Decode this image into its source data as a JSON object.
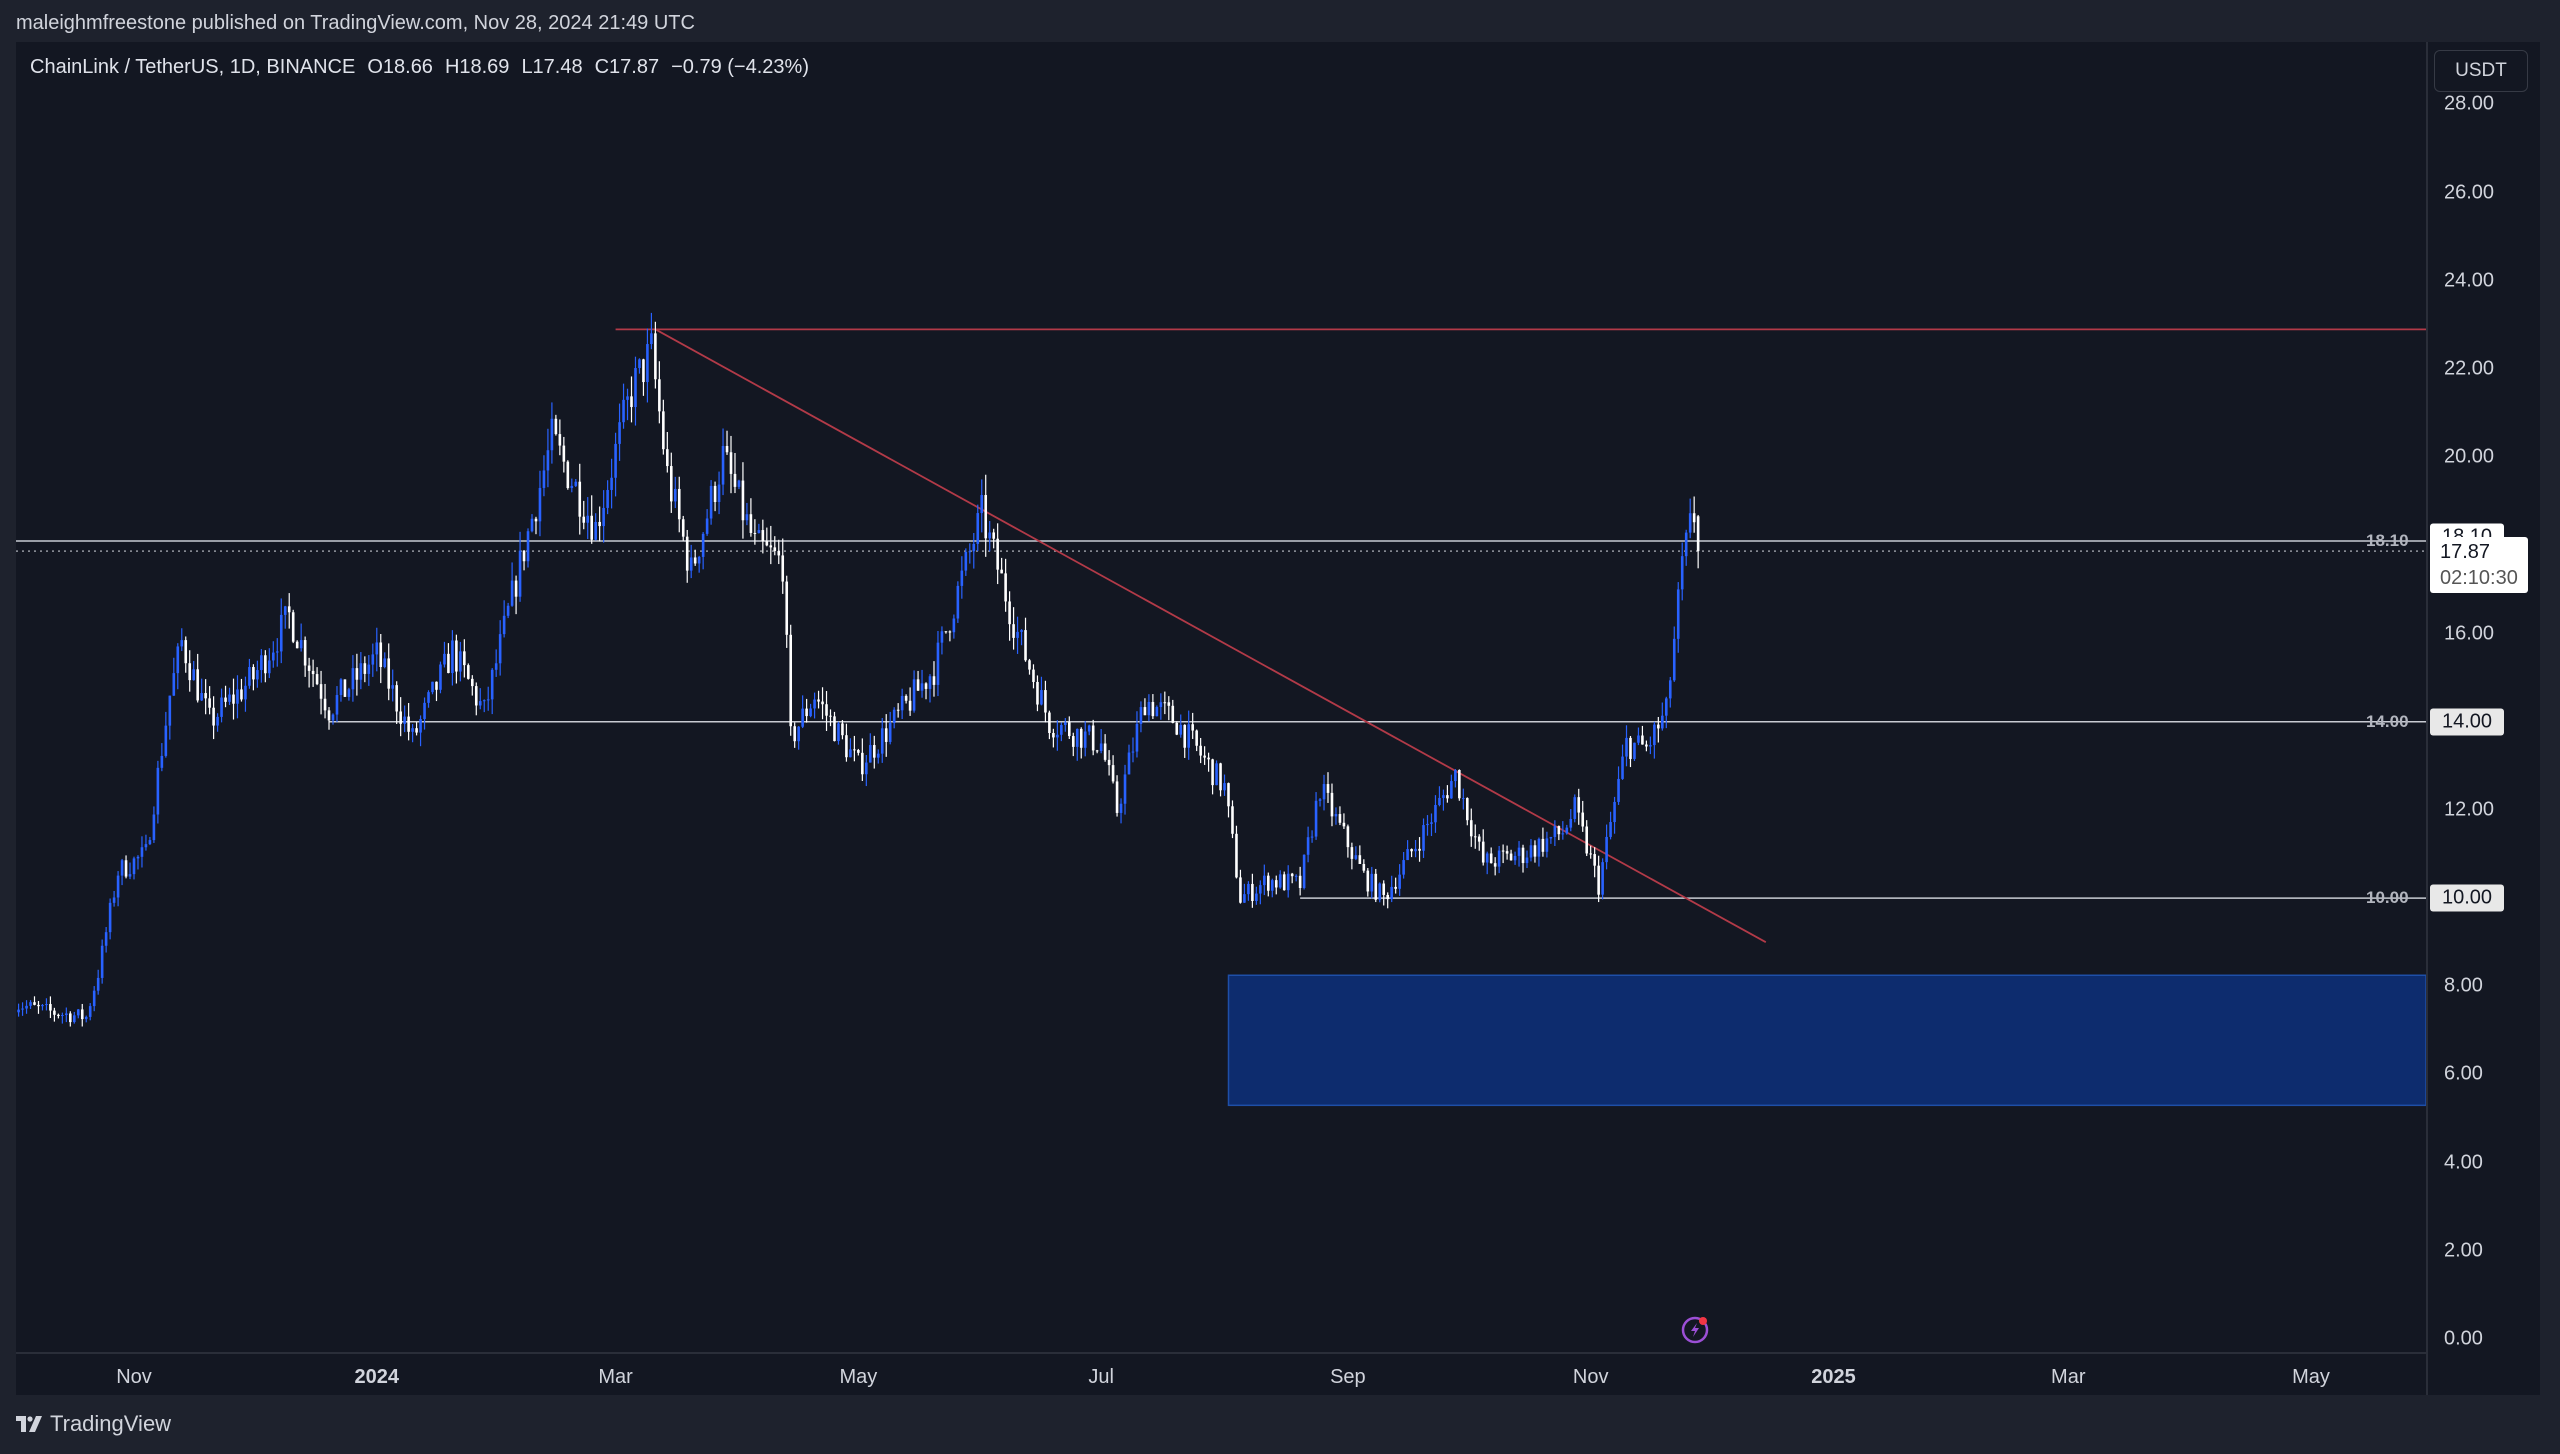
{
  "header": {
    "publisher_text": "maleighmfreestone published on TradingView.com, Nov 28, 2024 21:49 UTC"
  },
  "legend": {
    "symbol": "ChainLink / TetherUS, 1D, BINANCE",
    "open": "O18.66",
    "high": "H18.69",
    "low": "L17.48",
    "close": "C17.87",
    "change": "−0.79 (−4.23%)"
  },
  "price_axis": {
    "currency": "USDT",
    "labels": [
      "28.00",
      "26.00",
      "24.00",
      "22.00",
      "20.00",
      "16.00",
      "12.00",
      "8.00",
      "6.00",
      "4.00",
      "2.00",
      "0.00"
    ],
    "tags": {
      "level_18": "18.10",
      "last_price": "17.87",
      "countdown": "02:10:30",
      "level_14": "14.00",
      "level_10": "10.00"
    }
  },
  "line_labels": {
    "l18": "18.10",
    "l14": "14.00",
    "l10": "10.00"
  },
  "time_axis": {
    "labels": [
      {
        "text": "Nov",
        "date": "2023-11-01",
        "bold": false
      },
      {
        "text": "2024",
        "date": "2024-01-01",
        "bold": true
      },
      {
        "text": "Mar",
        "date": "2024-03-01",
        "bold": false
      },
      {
        "text": "May",
        "date": "2024-05-01",
        "bold": false
      },
      {
        "text": "Jul",
        "date": "2024-07-01",
        "bold": false
      },
      {
        "text": "Sep",
        "date": "2024-09-01",
        "bold": false
      },
      {
        "text": "Nov",
        "date": "2024-11-01",
        "bold": false
      },
      {
        "text": "2025",
        "date": "2025-01-01",
        "bold": true
      },
      {
        "text": "Mar",
        "date": "2025-03-01",
        "bold": false
      },
      {
        "text": "May",
        "date": "2025-05-01",
        "bold": false
      }
    ]
  },
  "footer": {
    "brand": "TradingView"
  },
  "colors": {
    "up": "#2962ff",
    "down": "#ffffff",
    "trend": "#b23a48",
    "zone": "#0d2c6e",
    "zone_border": "#1e4fa8",
    "level": "#c8cbd3"
  },
  "chart_data": {
    "type": "candlestick",
    "symbol": "LINKUSDT",
    "interval": "1D",
    "ylim": [
      0,
      28
    ],
    "last": {
      "open": 18.66,
      "high": 18.69,
      "low": 17.48,
      "close": 17.87
    },
    "close_path": [
      [
        "2023-10-02",
        7.6
      ],
      [
        "2023-10-12",
        7.4
      ],
      [
        "2023-10-20",
        7.3
      ],
      [
        "2023-10-23",
        8.3
      ],
      [
        "2023-10-28",
        10.6
      ],
      [
        "2023-11-04",
        11.0
      ],
      [
        "2023-11-10",
        14.6
      ],
      [
        "2023-11-13",
        15.8
      ],
      [
        "2023-11-20",
        14.0
      ],
      [
        "2023-12-01",
        15.0
      ],
      [
        "2023-12-10",
        16.4
      ],
      [
        "2023-12-20",
        14.3
      ],
      [
        "2024-01-01",
        15.5
      ],
      [
        "2024-01-10",
        13.6
      ],
      [
        "2024-01-20",
        15.6
      ],
      [
        "2024-01-28",
        14.2
      ],
      [
        "2024-02-05",
        17.2
      ],
      [
        "2024-02-14",
        20.4
      ],
      [
        "2024-02-25",
        18.4
      ],
      [
        "2024-03-05",
        21.5
      ],
      [
        "2024-03-10",
        22.4
      ],
      [
        "2024-03-14",
        19.6
      ],
      [
        "2024-03-20",
        17.4
      ],
      [
        "2024-03-28",
        20.0
      ],
      [
        "2024-04-05",
        18.0
      ],
      [
        "2024-04-12",
        17.6
      ],
      [
        "2024-04-14",
        13.6
      ],
      [
        "2024-04-20",
        14.6
      ],
      [
        "2024-05-01",
        13.0
      ],
      [
        "2024-05-10",
        14.0
      ],
      [
        "2024-05-20",
        15.2
      ],
      [
        "2024-06-01",
        18.7
      ],
      [
        "2024-06-10",
        16.0
      ],
      [
        "2024-06-18",
        14.0
      ],
      [
        "2024-07-01",
        13.5
      ],
      [
        "2024-07-05",
        12.0
      ],
      [
        "2024-07-12",
        14.5
      ],
      [
        "2024-07-20",
        14.0
      ],
      [
        "2024-08-01",
        12.5
      ],
      [
        "2024-08-05",
        10.0
      ],
      [
        "2024-08-12",
        10.4
      ],
      [
        "2024-08-20",
        10.3
      ],
      [
        "2024-08-25",
        12.5
      ],
      [
        "2024-09-05",
        10.5
      ],
      [
        "2024-09-10",
        10.0
      ],
      [
        "2024-09-20",
        11.5
      ],
      [
        "2024-09-28",
        12.8
      ],
      [
        "2024-10-05",
        10.8
      ],
      [
        "2024-10-15",
        11.0
      ],
      [
        "2024-10-25",
        11.5
      ],
      [
        "2024-10-28",
        12.0
      ],
      [
        "2024-11-03",
        10.3
      ],
      [
        "2024-11-10",
        13.5
      ],
      [
        "2024-11-15",
        13.4
      ],
      [
        "2024-11-20",
        14.2
      ],
      [
        "2024-11-24",
        17.5
      ],
      [
        "2024-11-26",
        18.4
      ],
      [
        "2024-11-27",
        18.66
      ],
      [
        "2024-11-28",
        17.87
      ]
    ],
    "drawings": {
      "resistance_line": {
        "price": 22.9,
        "from": "2024-03-01"
      },
      "trendline": {
        "from": [
          "2024-03-11",
          22.9
        ],
        "to": [
          "2024-12-15",
          9.0
        ]
      },
      "levels": [
        {
          "price": 18.1,
          "from": "2023-10-02"
        },
        {
          "price": 14.0,
          "from": "2023-12-20"
        },
        {
          "price": 10.0,
          "from": "2024-08-20"
        }
      ],
      "last_price_line": 17.87,
      "demand_zone": {
        "from": "2024-08-02",
        "top": 8.25,
        "bottom": 5.3
      }
    }
  }
}
